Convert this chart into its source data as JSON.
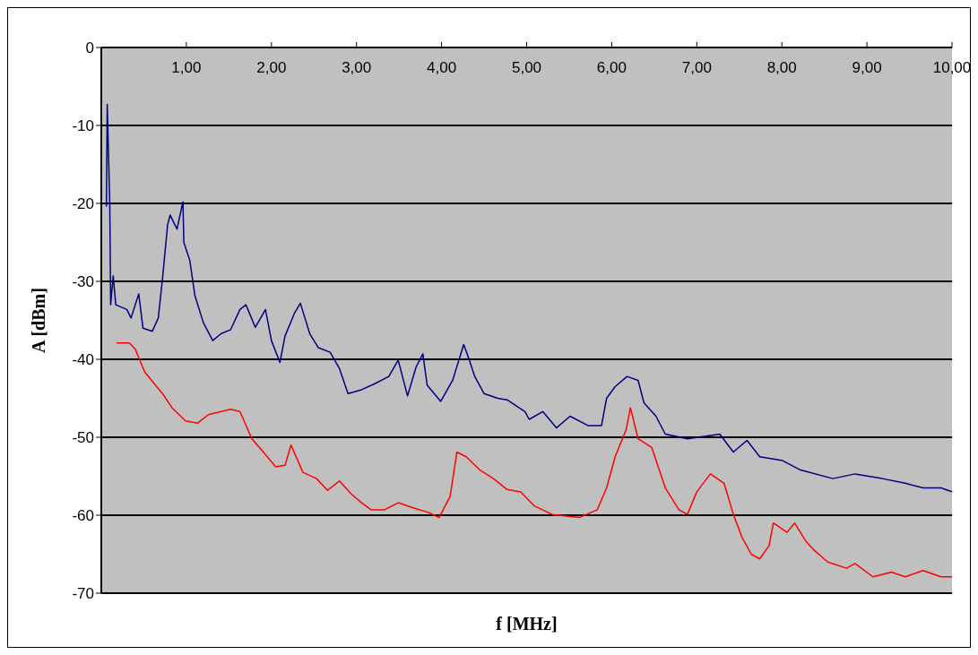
{
  "chart_data": {
    "type": "line",
    "xlabel": "f [MHz]",
    "ylabel": "A [dBm]",
    "xlim": [
      0,
      10
    ],
    "xticks": [
      {
        "value": 1,
        "label": "1,00"
      },
      {
        "value": 2,
        "label": "2,00"
      },
      {
        "value": 3,
        "label": "3,00"
      },
      {
        "value": 4,
        "label": "4,00"
      },
      {
        "value": 5,
        "label": "5,00"
      },
      {
        "value": 6,
        "label": "6,00"
      },
      {
        "value": 7,
        "label": "7,00"
      },
      {
        "value": 8,
        "label": "8,00"
      },
      {
        "value": 9,
        "label": "9,00"
      },
      {
        "value": 10,
        "label": "10,00"
      }
    ],
    "ylim": [
      -70,
      0
    ],
    "yticks": [
      -70,
      -60,
      -50,
      -40,
      -30,
      -20,
      -10,
      0
    ],
    "grid": "y",
    "marker": "none",
    "line_style": "solid",
    "series": [
      {
        "color": "#000080",
        "x": [
          0.06,
          0.07,
          0.1,
          0.11,
          0.14,
          0.17,
          0.3,
          0.35,
          0.44,
          0.49,
          0.6,
          0.67,
          0.72,
          0.78,
          0.81,
          0.89,
          0.96,
          0.97,
          1.04,
          1.1,
          1.2,
          1.31,
          1.41,
          1.52,
          1.63,
          1.7,
          1.81,
          1.93,
          2.0,
          2.1,
          2.16,
          2.27,
          2.34,
          2.45,
          2.55,
          2.69,
          2.8,
          2.9,
          3.06,
          3.22,
          3.38,
          3.49,
          3.6,
          3.7,
          3.78,
          3.83,
          3.99,
          4.13,
          4.26,
          4.32,
          4.39,
          4.5,
          4.66,
          4.77,
          4.98,
          5.03,
          5.19,
          5.35,
          5.51,
          5.72,
          5.88,
          5.94,
          6.04,
          6.18,
          6.31,
          6.38,
          6.52,
          6.63,
          6.89,
          7.27,
          7.43,
          7.59,
          7.74,
          8.01,
          8.22,
          8.6,
          8.86,
          9.18,
          9.45,
          9.66,
          9.87,
          10
        ],
        "values": [
          -20.4,
          -7.3,
          -20.2,
          -33,
          -29.3,
          -33,
          -33.6,
          -34.7,
          -31.6,
          -36,
          -36.4,
          -34.7,
          -29.6,
          -22.7,
          -21.5,
          -23.3,
          -19.8,
          -25,
          -27.3,
          -31.8,
          -35.3,
          -37.6,
          -36.7,
          -36.2,
          -33.6,
          -33,
          -35.9,
          -33.6,
          -37.6,
          -40.4,
          -37,
          -34.1,
          -32.8,
          -36.7,
          -38.5,
          -39.1,
          -41.2,
          -44.4,
          -43.9,
          -43.1,
          -42.2,
          -40.1,
          -44.7,
          -41,
          -39.3,
          -43.3,
          -45.4,
          -42.7,
          -38.1,
          -39.9,
          -42.2,
          -44.4,
          -45,
          -45.2,
          -46.7,
          -47.7,
          -46.7,
          -48.8,
          -47.3,
          -48.5,
          -48.5,
          -45,
          -43.5,
          -42.2,
          -42.7,
          -45.6,
          -47.3,
          -49.6,
          -50.2,
          -49.6,
          -51.9,
          -50.4,
          -52.5,
          -53,
          -54.2,
          -55.3,
          -54.7,
          -55.3,
          -55.9,
          -56.5,
          -56.5,
          -57
        ]
      },
      {
        "color": "#ff0000",
        "x": [
          0.18,
          0.33,
          0.4,
          0.51,
          0.62,
          0.72,
          0.83,
          0.99,
          1.13,
          1.26,
          1.52,
          1.63,
          1.77,
          1.89,
          2.05,
          2.16,
          2.23,
          2.37,
          2.53,
          2.66,
          2.8,
          2.94,
          3.06,
          3.17,
          3.33,
          3.49,
          3.65,
          3.86,
          3.97,
          4.1,
          4.18,
          4.29,
          4.45,
          4.61,
          4.77,
          4.93,
          5.09,
          5.3,
          5.62,
          5.83,
          5.94,
          6.04,
          6.17,
          6.22,
          6.31,
          6.47,
          6.63,
          6.79,
          6.89,
          7.0,
          7.16,
          7.32,
          7.43,
          7.53,
          7.64,
          7.74,
          7.85,
          7.9,
          8.06,
          8.15,
          8.28,
          8.38,
          8.54,
          8.76,
          8.86,
          9.07,
          9.29,
          9.45,
          9.66,
          9.87,
          10
        ],
        "values": [
          -37.9,
          -37.9,
          -38.7,
          -41.6,
          -43.1,
          -44.4,
          -46.2,
          -47.9,
          -48.2,
          -47.1,
          -46.4,
          -46.7,
          -50.2,
          -51.7,
          -53.8,
          -53.6,
          -51,
          -54.5,
          -55.3,
          -56.8,
          -55.6,
          -57.3,
          -58.4,
          -59.3,
          -59.3,
          -58.4,
          -59,
          -59.7,
          -60.3,
          -57.6,
          -51.9,
          -52.5,
          -54.2,
          -55.3,
          -56.7,
          -57,
          -58.8,
          -59.9,
          -60.3,
          -59.3,
          -56.5,
          -52.5,
          -49,
          -46.2,
          -50.2,
          -51.3,
          -56.5,
          -59.3,
          -59.9,
          -57,
          -54.7,
          -55.9,
          -59.9,
          -62.8,
          -65,
          -65.6,
          -63.9,
          -61,
          -62.2,
          -61,
          -63.3,
          -64.5,
          -66,
          -66.8,
          -66.2,
          -67.9,
          -67.3,
          -67.9,
          -67.1,
          -67.9,
          -67.9
        ]
      }
    ]
  }
}
